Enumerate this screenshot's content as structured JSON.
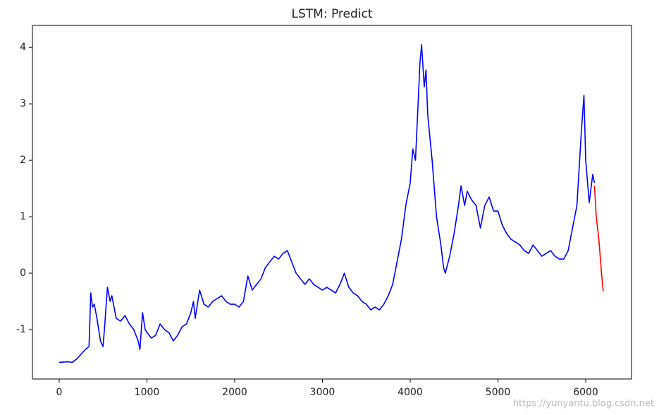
{
  "chart_data": {
    "type": "line",
    "title": "LSTM: Predict",
    "xlim": [
      -305,
      6522
    ],
    "xticks": [
      0,
      1000,
      2000,
      3000,
      4000,
      5000,
      6000
    ],
    "ylim": [
      -1.875,
      4.39
    ],
    "yticks": [
      -1,
      0,
      1,
      2,
      3,
      4
    ],
    "grid": false,
    "watermark": "https://yunyantu.blog.csdn.net",
    "series": [
      {
        "color": "#0000ff",
        "x": [
          0,
          100,
          150,
          200,
          300,
          340,
          360,
          380,
          400,
          430,
          470,
          500,
          520,
          550,
          580,
          600,
          650,
          700,
          750,
          800,
          850,
          900,
          920,
          950,
          980,
          1000,
          1050,
          1100,
          1150,
          1200,
          1250,
          1300,
          1350,
          1400,
          1450,
          1500,
          1530,
          1550,
          1600,
          1650,
          1700,
          1750,
          1800,
          1850,
          1900,
          1950,
          2000,
          2050,
          2100,
          2150,
          2200,
          2250,
          2300,
          2350,
          2400,
          2450,
          2500,
          2550,
          2600,
          2650,
          2700,
          2750,
          2800,
          2850,
          2900,
          2950,
          3000,
          3050,
          3100,
          3150,
          3200,
          3250,
          3300,
          3350,
          3400,
          3450,
          3500,
          3550,
          3600,
          3650,
          3700,
          3750,
          3800,
          3850,
          3900,
          3950,
          4000,
          4030,
          4060,
          4090,
          4110,
          4130,
          4160,
          4180,
          4200,
          4250,
          4300,
          4350,
          4380,
          4400,
          4450,
          4500,
          4550,
          4580,
          4620,
          4650,
          4700,
          4750,
          4800,
          4850,
          4900,
          4950,
          5000,
          5050,
          5100,
          5150,
          5200,
          5250,
          5300,
          5350,
          5400,
          5450,
          5500,
          5550,
          5600,
          5650,
          5700,
          5750,
          5800,
          5850,
          5900,
          5950,
          5980,
          6000,
          6040,
          6080,
          6100
        ],
        "values": [
          -1.58,
          -1.57,
          -1.58,
          -1.52,
          -1.35,
          -1.3,
          -0.35,
          -0.6,
          -0.55,
          -0.8,
          -1.2,
          -1.3,
          -0.9,
          -0.25,
          -0.5,
          -0.4,
          -0.8,
          -0.85,
          -0.75,
          -0.9,
          -1.0,
          -1.2,
          -1.35,
          -0.7,
          -1.0,
          -1.05,
          -1.15,
          -1.1,
          -0.9,
          -1.0,
          -1.05,
          -1.2,
          -1.1,
          -0.95,
          -0.9,
          -0.7,
          -0.5,
          -0.8,
          -0.3,
          -0.55,
          -0.6,
          -0.5,
          -0.45,
          -0.4,
          -0.5,
          -0.55,
          -0.55,
          -0.6,
          -0.5,
          -0.05,
          -0.3,
          -0.2,
          -0.1,
          0.1,
          0.2,
          0.3,
          0.25,
          0.35,
          0.4,
          0.2,
          0.0,
          -0.1,
          -0.2,
          -0.1,
          -0.2,
          -0.25,
          -0.3,
          -0.25,
          -0.3,
          -0.35,
          -0.2,
          0.0,
          -0.25,
          -0.35,
          -0.4,
          -0.5,
          -0.55,
          -0.65,
          -0.6,
          -0.65,
          -0.55,
          -0.4,
          -0.2,
          0.2,
          0.6,
          1.2,
          1.6,
          2.2,
          2.0,
          3.0,
          3.7,
          4.05,
          3.3,
          3.6,
          2.8,
          2.0,
          1.0,
          0.5,
          0.1,
          0.0,
          0.3,
          0.7,
          1.2,
          1.55,
          1.2,
          1.45,
          1.3,
          1.2,
          0.8,
          1.2,
          1.35,
          1.1,
          1.1,
          0.85,
          0.7,
          0.6,
          0.55,
          0.5,
          0.4,
          0.35,
          0.5,
          0.4,
          0.3,
          0.35,
          0.4,
          0.3,
          0.25,
          0.25,
          0.4,
          0.8,
          1.2,
          2.5,
          3.15,
          2.0,
          1.25,
          1.75,
          1.6
        ]
      },
      {
        "color": "#ff0000",
        "x": [
          6100,
          6120,
          6150,
          6180,
          6200
        ],
        "values": [
          1.55,
          1.0,
          0.6,
          0.0,
          -0.32
        ]
      }
    ]
  }
}
